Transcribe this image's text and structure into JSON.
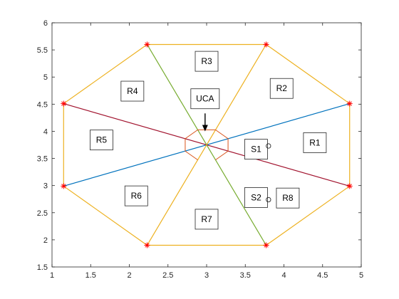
{
  "chart_data": {
    "type": "scatter",
    "title": "",
    "xlabel": "",
    "ylabel": "",
    "xlim": [
      1,
      5
    ],
    "ylim": [
      1.5,
      6
    ],
    "grid": false,
    "x_ticks": [
      "1",
      "1.5",
      "2",
      "2.5",
      "3",
      "3.5",
      "4",
      "4.5",
      "5"
    ],
    "y_ticks": [
      "1.5",
      "2",
      "2.5",
      "3",
      "3.5",
      "4",
      "4.5",
      "5",
      "5.5",
      "6"
    ],
    "center": [
      3.0,
      3.75
    ],
    "vertices": [
      {
        "x": 4.85,
        "y": 4.51
      },
      {
        "x": 3.77,
        "y": 5.6
      },
      {
        "x": 2.23,
        "y": 5.6
      },
      {
        "x": 1.15,
        "y": 4.51
      },
      {
        "x": 1.15,
        "y": 2.99
      },
      {
        "x": 2.23,
        "y": 1.9
      },
      {
        "x": 3.77,
        "y": 1.9
      },
      {
        "x": 4.85,
        "y": 2.99
      }
    ],
    "diagonals": [
      {
        "from": [
          1.15,
          2.99
        ],
        "to": [
          4.85,
          4.51
        ],
        "color": "#0072bd"
      },
      {
        "from": [
          1.15,
          4.51
        ],
        "to": [
          4.85,
          2.99
        ],
        "color": "#a2142f"
      },
      {
        "from": [
          2.23,
          5.6
        ],
        "to": [
          3.77,
          1.9
        ],
        "color": "#77ac30"
      },
      {
        "from": [
          3.77,
          5.6
        ],
        "to": [
          2.23,
          1.9
        ],
        "color": "#edb120"
      }
    ],
    "outline_color": "#edb120",
    "marker_color": "#ff0000",
    "uca_color": "#d95319",
    "uca_radius": 0.3,
    "region_labels": [
      {
        "text": "R1",
        "x": 4.4,
        "y": 3.79
      },
      {
        "text": "R2",
        "x": 3.97,
        "y": 4.79
      },
      {
        "text": "R3",
        "x": 3.0,
        "y": 5.29
      },
      {
        "text": "R4",
        "x": 2.04,
        "y": 4.74
      },
      {
        "text": "R5",
        "x": 1.64,
        "y": 3.84
      },
      {
        "text": "R6",
        "x": 2.09,
        "y": 2.81
      },
      {
        "text": "R7",
        "x": 3.0,
        "y": 2.38
      },
      {
        "text": "R8",
        "x": 4.05,
        "y": 2.77
      }
    ],
    "sources": [
      {
        "text": "S1",
        "x": 3.64,
        "y": 3.67,
        "mx": 3.8,
        "my": 3.73
      },
      {
        "text": "S2",
        "x": 3.64,
        "y": 2.78,
        "mx": 3.8,
        "my": 2.74
      }
    ],
    "annotation": {
      "text": "UCA",
      "x": 2.98,
      "y": 4.6,
      "arrow_from": [
        2.98,
        4.33
      ],
      "arrow_to": [
        2.98,
        4.0
      ]
    }
  }
}
